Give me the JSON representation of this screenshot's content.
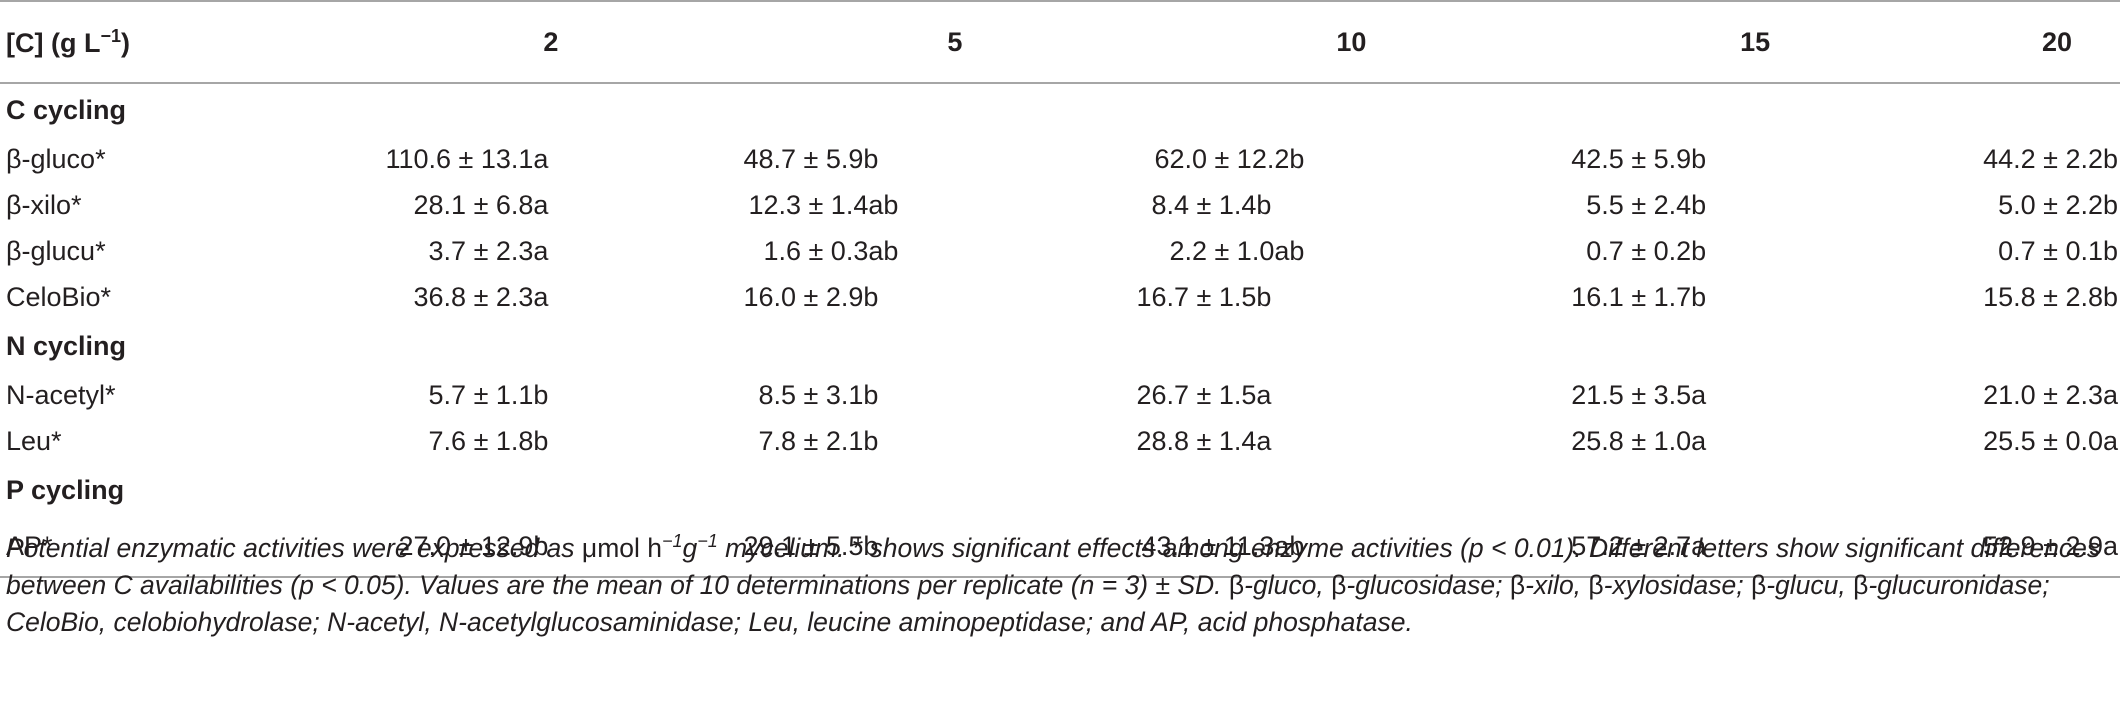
{
  "table": {
    "header": {
      "label": "[C] (g L",
      "label_sup": "−1",
      "label_close": ")",
      "columns": [
        "2",
        "5",
        "10",
        "15",
        "20"
      ]
    },
    "sections": [
      {
        "title": "C cycling",
        "rows": [
          {
            "label": "β-gluco*",
            "values": [
              "110.6 ± 13.1a",
              "48.7 ± 5.9b",
              "62.0 ± 12.2b",
              "42.5 ± 5.9b",
              "44.2 ± 2.2b"
            ]
          },
          {
            "label": "β-xilo*",
            "values": [
              "28.1 ± 6.8a",
              "12.3 ± 1.4ab",
              "8.4 ± 1.4b",
              "5.5 ± 2.4b",
              "5.0 ± 2.2b"
            ]
          },
          {
            "label": "β-glucu*",
            "values": [
              "3.7 ± 2.3a",
              "1.6 ± 0.3ab",
              "2.2 ± 1.0ab",
              "0.7 ± 0.2b",
              "0.7 ± 0.1b"
            ]
          },
          {
            "label": "CeloBio*",
            "values": [
              "36.8 ± 2.3a",
              "16.0 ± 2.9b",
              "16.7 ± 1.5b",
              "16.1 ± 1.7b",
              "15.8 ± 2.8b"
            ]
          }
        ]
      },
      {
        "title": "N cycling",
        "rows": [
          {
            "label": "N-acetyl*",
            "values": [
              "5.7 ± 1.1b",
              "8.5 ± 3.1b",
              "26.7 ± 1.5a",
              "21.5 ± 3.5a",
              "21.0 ± 2.3a"
            ]
          },
          {
            "label": "Leu*",
            "values": [
              "7.6 ± 1.8b",
              "7.8 ± 2.1b",
              "28.8 ± 1.4a",
              "25.8 ± 1.0a",
              "25.5 ± 0.0a"
            ]
          }
        ]
      },
      {
        "title": "P cycling",
        "rows": [
          {
            "label": "AP*",
            "values": [
              "27.0 ± 12.9b",
              "29.1 ± 5.5b",
              "43.1 ± 11.3ab",
              "57.2 ± 2.7a",
              "52.9 ± 2.9a"
            ]
          }
        ]
      }
    ]
  },
  "caption": {
    "part1": "Potential enzymatic activities were expressed as ",
    "unit_mu": "μ",
    "unit_mol_h": "mol h",
    "sup1": "−1",
    "unit_g": "g",
    "sup2": "−1",
    "part2": " mycelium. * shows significant effects among enzyme activities (p < 0.01). Different letters show significant differences between C availabilities (p < 0.05). Values are the mean of 10 determinations per replicate (n = 3) ± SD. ",
    "b1": "β",
    "t1": "-gluco, ",
    "b2": "β",
    "t2": "-glucosidase; ",
    "b3": "β",
    "t3": "-xilo, ",
    "b4": "β",
    "t4": "-xylosidase; ",
    "b5": "β",
    "t5": "-glucu, ",
    "b6": "β",
    "t6": "-glucuronidase; CeloBio, celobiohydrolase; N-acetyl, N-acetylglucosaminidase; Leu, leucine aminopeptidase; and AP, acid phosphatase."
  }
}
